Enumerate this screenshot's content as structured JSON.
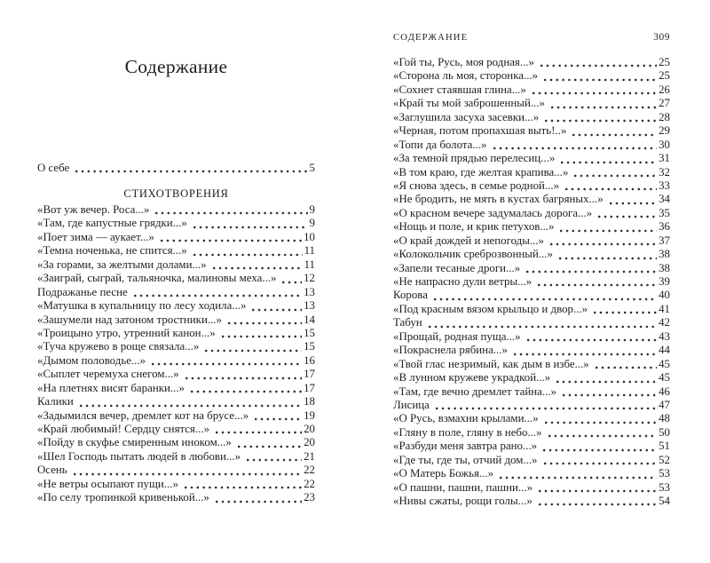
{
  "colors": {
    "background": "#ffffff",
    "text": "#1f1f1f"
  },
  "book": {
    "left_page": {
      "title": "Содержание",
      "about_entry": {
        "title": "О себе",
        "page": "5"
      },
      "section_heading": "СТИХОТВОРЕНИЯ",
      "entries": [
        {
          "title": "«Вот уж вечер. Роса...»",
          "page": "9"
        },
        {
          "title": "«Там, где капустные грядки...»",
          "page": "9"
        },
        {
          "title": "«Поет зима — аукает...»",
          "page": "10"
        },
        {
          "title": "«Темна ноченька, не спится...»",
          "page": "11"
        },
        {
          "title": "«За горами, за желтыми долами...»",
          "page": "11"
        },
        {
          "title": "«Заиграй, сыграй, тальяночка, малиновы меха...»",
          "page": "12"
        },
        {
          "title": "Подражанье песне",
          "page": "13"
        },
        {
          "title": "«Матушка в купальницу по лесу ходила...»",
          "page": "13"
        },
        {
          "title": "«Зашумели над затоном тростники...»",
          "page": "14"
        },
        {
          "title": "«Троицыно утро, утренний канон...»",
          "page": "15"
        },
        {
          "title": "«Туча кружево в роще связала...»",
          "page": "15"
        },
        {
          "title": "«Дымом половодье...»",
          "page": "16"
        },
        {
          "title": "«Сыплет черемуха снегом...»",
          "page": "17"
        },
        {
          "title": "«На плетнях висят баранки...»",
          "page": "17"
        },
        {
          "title": "Калики",
          "page": "18"
        },
        {
          "title": "«Задымился вечер, дремлет кот на брусе...»",
          "page": "19"
        },
        {
          "title": "«Край любимый! Сердцу снятся...»",
          "page": "20"
        },
        {
          "title": "«Пойду в скуфье смиренным иноком...»",
          "page": "20"
        },
        {
          "title": "«Шел Господь пытать людей в любови...»",
          "page": "21"
        },
        {
          "title": "Осень",
          "page": "22"
        },
        {
          "title": "«Не ветры осыпают пущи...»",
          "page": "22"
        },
        {
          "title": "«По селу тропинкой кривенькой...»",
          "page": "23"
        }
      ]
    },
    "right_page": {
      "running_header": "СОДЕРЖАНИЕ",
      "page_number": "309",
      "entries": [
        {
          "title": "«Гой ты, Русь, моя родная...»",
          "page": "25"
        },
        {
          "title": "«Сторона ль моя, сторонка...»",
          "page": "25"
        },
        {
          "title": "«Сохнет стаявшая глина...»",
          "page": "26"
        },
        {
          "title": "«Край ты мой заброшенный...»",
          "page": "27"
        },
        {
          "title": "«Заглушила засуха засевки...»",
          "page": "28"
        },
        {
          "title": "«Черная, потом пропахшая выть!..»",
          "page": "29"
        },
        {
          "title": "«Топи да болота...»",
          "page": "30"
        },
        {
          "title": "«За темной прядью перелесиц...»",
          "page": "31"
        },
        {
          "title": "«В том краю, где желтая крапива...»",
          "page": "32"
        },
        {
          "title": "«Я снова здесь, в семье родной...»",
          "page": "33"
        },
        {
          "title": "«Не бродить, не мять в кустах багряных...»",
          "page": "34"
        },
        {
          "title": "«О красном вечере задумалась дорога...»",
          "page": "35"
        },
        {
          "title": "«Нощь и поле, и крик петухов...»",
          "page": "36"
        },
        {
          "title": "«О край дождей и непогоды...»",
          "page": "37"
        },
        {
          "title": "«Колокольчик среброзвонный...»",
          "page": "38"
        },
        {
          "title": "«Запели тесаные дроги...»",
          "page": "38"
        },
        {
          "title": "«Не напрасно дули ветры...»",
          "page": "39"
        },
        {
          "title": "Корова",
          "page": "40"
        },
        {
          "title": "«Под красным вязом крыльцо и двор...»",
          "page": "41"
        },
        {
          "title": "Табун",
          "page": "42"
        },
        {
          "title": "«Прощай, родная пуща...»",
          "page": "43"
        },
        {
          "title": "«Покраснела рябина...»",
          "page": "44"
        },
        {
          "title": "«Твой глас незримый, как дым в избе...»",
          "page": "45"
        },
        {
          "title": "«В лунном кружеве украдкой...»",
          "page": "45"
        },
        {
          "title": "«Там, где вечно дремлет тайна...»",
          "page": "46"
        },
        {
          "title": "Лисица",
          "page": "47"
        },
        {
          "title": "«О Русь, взмахни крылами...»",
          "page": "48"
        },
        {
          "title": "«Гляну в поле, гляну в небо...»",
          "page": "50"
        },
        {
          "title": "«Разбуди меня завтра рано...»",
          "page": "51"
        },
        {
          "title": "«Где ты, где ты, отчий дом...»",
          "page": "52"
        },
        {
          "title": "«О Матерь Божья...»",
          "page": "53"
        },
        {
          "title": "«О пашни, пашни, пашни...»",
          "page": "53"
        },
        {
          "title": "«Нивы сжаты, рощи голы...»",
          "page": "54"
        }
      ]
    }
  }
}
